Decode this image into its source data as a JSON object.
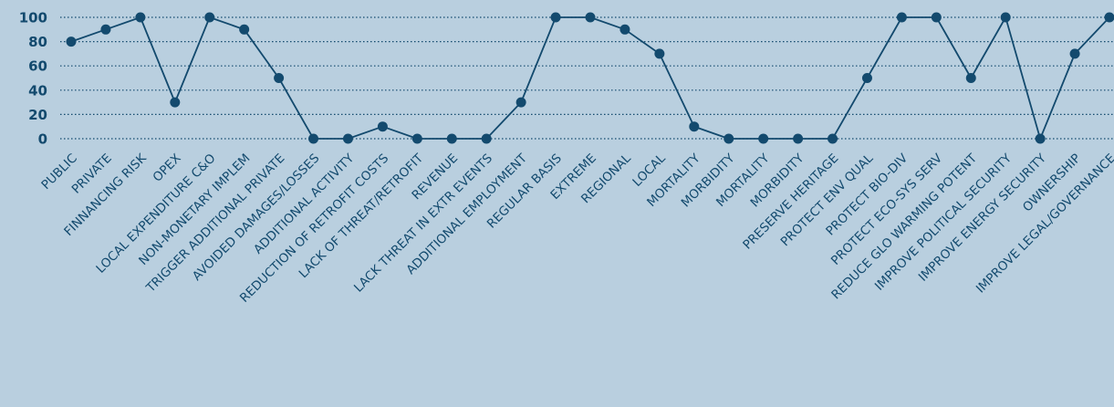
{
  "colors": {
    "background": "#b9cfdf",
    "line": "#134a6e",
    "text": "#134a6e",
    "grid": "#134a6e"
  },
  "chart_data": {
    "type": "line",
    "title": "",
    "xlabel": "",
    "ylabel": "",
    "ylim": [
      0,
      100
    ],
    "yticks": [
      0,
      20,
      40,
      60,
      80,
      100
    ],
    "grid": "horizontal-dotted",
    "legend": "none",
    "categories": [
      "PUBLIC",
      "PRIVATE",
      "FINNANCING RISK",
      "OPEX",
      "LOCAL EXPENDITURE C&O",
      "NON-MONETARY IMPLEM",
      "TRIGGER ADDITIONAL PRIVATE",
      "AVOIDED DAMAGES/LOSSES",
      "ADDITIONAL ACTIVITY",
      "REDUCTION OF RETROFIT COSTS",
      "LACK OF THREAT/RETROFIT",
      "REVENUE",
      "LACK THREAT IN EXTR EVENTS",
      "ADDITIONAL EMPLOYMENT",
      "REGULAR BASIS",
      "EXTREME",
      "REGIONAL",
      "LOCAL",
      "MORTALITY",
      "MORBIDITY",
      "MORTALITY",
      "MORBIDITY",
      "PRESERVE HERITAGE",
      "PROTECT ENV QUAL",
      "PROTECT BIO-DIV",
      "PROTECT ECO-SYS SERV",
      "REDUCE GLO WARMING POTENT",
      "IMPROVE POLITICAL SECURITY",
      "IMPROVE ENERGY SECURITY",
      "OWNERSHIP",
      "IMPROVE LEGAL/GOVERNANCE"
    ],
    "series": [
      {
        "values": [
          80,
          90,
          100,
          30,
          100,
          90,
          50,
          0,
          0,
          10,
          0,
          0,
          0,
          30,
          100,
          100,
          90,
          70,
          10,
          0,
          0,
          0,
          0,
          50,
          100,
          100,
          50,
          100,
          0,
          70,
          100
        ]
      }
    ]
  }
}
